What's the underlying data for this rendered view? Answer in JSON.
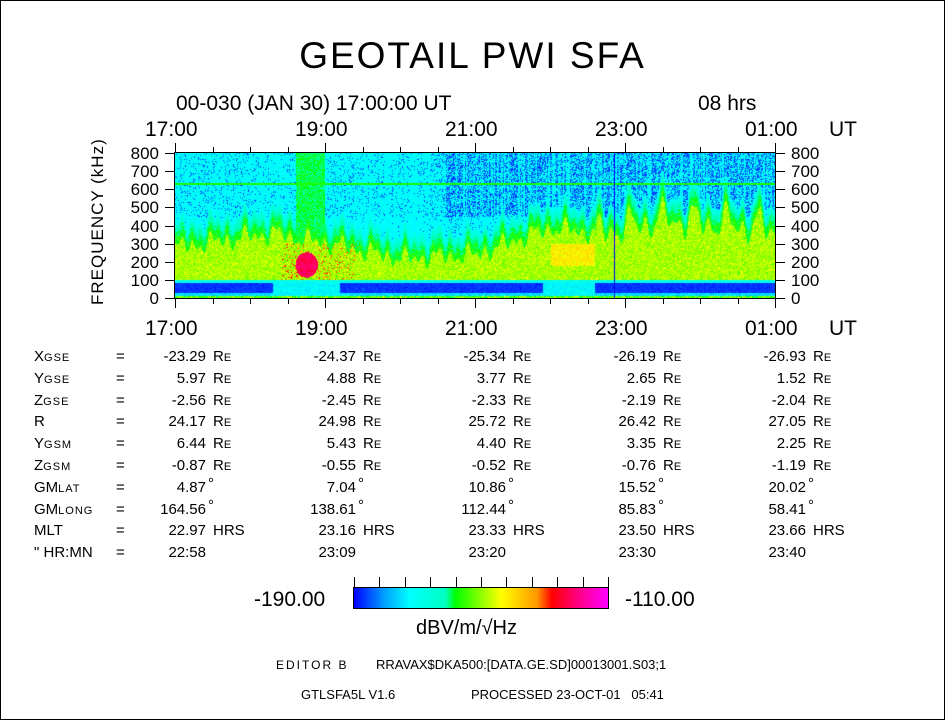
{
  "title": "GEOTAIL PWI SFA",
  "header": {
    "date_time": "00-030 (JAN 30) 17:00:00 UT",
    "duration": "08 hrs"
  },
  "chart_data": {
    "type": "heatmap",
    "title": "GEOTAIL PWI SFA",
    "xlabel": "UT",
    "ylabel": "FREQUENCY (kHz)",
    "x_tick_labels": [
      "17:00",
      "19:00",
      "21:00",
      "23:00",
      "01:00"
    ],
    "x_unit_label": "UT",
    "xlim_hours": [
      17,
      25
    ],
    "y_tick_labels": [
      "800",
      "700",
      "600",
      "500",
      "400",
      "300",
      "200",
      "100",
      "0"
    ],
    "ylim": [
      0,
      800
    ],
    "colorbar": {
      "min_label": "-190.00",
      "max_label": "-110.00",
      "min": -190,
      "max": -110,
      "unit": "dBV/m/√Hz",
      "colors": [
        "#0000ff",
        "#00a0ff",
        "#00ffff",
        "#00ffc0",
        "#00ff00",
        "#ffff00",
        "#ff9900",
        "#ff0000",
        "#ff0080",
        "#ff00ff"
      ]
    },
    "features": {
      "emission_band_low_kHz": 100,
      "emission_band_top_kHz": [
        {
          "t": 17.0,
          "f": 320
        },
        {
          "t": 18.3,
          "f": 400
        },
        {
          "t": 19.2,
          "f": 330
        },
        {
          "t": 20.0,
          "f": 260
        },
        {
          "t": 21.0,
          "f": 280
        },
        {
          "t": 22.0,
          "f": 430
        },
        {
          "t": 22.6,
          "f": 400
        },
        {
          "t": 23.5,
          "f": 480
        },
        {
          "t": 24.5,
          "f": 450
        },
        {
          "t": 25.0,
          "f": 420
        }
      ],
      "intense_spot": {
        "t": 18.75,
        "f_low": 120,
        "f_high": 250,
        "level": -122
      },
      "narrowband_line_kHz": 630,
      "data_gap_time": 22.85
    }
  },
  "orbit": {
    "rows": [
      {
        "label": "X",
        "sub": "GSE",
        "eq": "=",
        "values": [
          "-23.29",
          "-24.37",
          "-25.34",
          "-26.19",
          "-26.93"
        ],
        "unit": "RE"
      },
      {
        "label": "Y",
        "sub": "GSE",
        "eq": "=",
        "values": [
          "5.97",
          "4.88",
          "3.77",
          "2.65",
          "1.52"
        ],
        "unit": "RE"
      },
      {
        "label": "Z",
        "sub": "GSE",
        "eq": "=",
        "values": [
          "-2.56",
          "-2.45",
          "-2.33",
          "-2.19",
          "-2.04"
        ],
        "unit": "RE"
      },
      {
        "label": "R",
        "sub": "",
        "eq": "=",
        "values": [
          "24.17",
          "24.98",
          "25.72",
          "26.42",
          "27.05"
        ],
        "unit": "RE"
      },
      {
        "label": "Y",
        "sub": "GSM",
        "eq": "=",
        "values": [
          "6.44",
          "5.43",
          "4.40",
          "3.35",
          "2.25"
        ],
        "unit": "RE"
      },
      {
        "label": "Z",
        "sub": "GSM",
        "eq": "=",
        "values": [
          "-0.87",
          "-0.55",
          "-0.52",
          "-0.76",
          "-1.19"
        ],
        "unit": "RE"
      },
      {
        "label": "GM",
        "sub": "LAT",
        "eq": "=",
        "values": [
          "4.87",
          "7.04",
          "10.86",
          "15.52",
          "20.02"
        ],
        "unit": "°"
      },
      {
        "label": "GM",
        "sub": "LONG",
        "eq": "=",
        "values": [
          "164.56",
          "138.61",
          "112.44",
          "85.83",
          "58.41"
        ],
        "unit": "°"
      },
      {
        "label": "MLT",
        "sub": "",
        "eq": "=",
        "values": [
          "22.97",
          "23.16",
          "23.33",
          "23.50",
          "23.66"
        ],
        "unit": "HRS"
      },
      {
        "label": "\" HR:MN",
        "sub": "",
        "eq": "=",
        "values": [
          "22:58",
          "23:09",
          "23:20",
          "23:30",
          "23:40"
        ],
        "unit": ""
      }
    ]
  },
  "footer": {
    "editor": "EDITOR B",
    "file": "RRAVAX$DKA500:[DATA.GE.SD]00013001.S03;1",
    "program": "GTLSFA5L V1.6",
    "processed": "PROCESSED 23-OCT-01   05:41"
  }
}
